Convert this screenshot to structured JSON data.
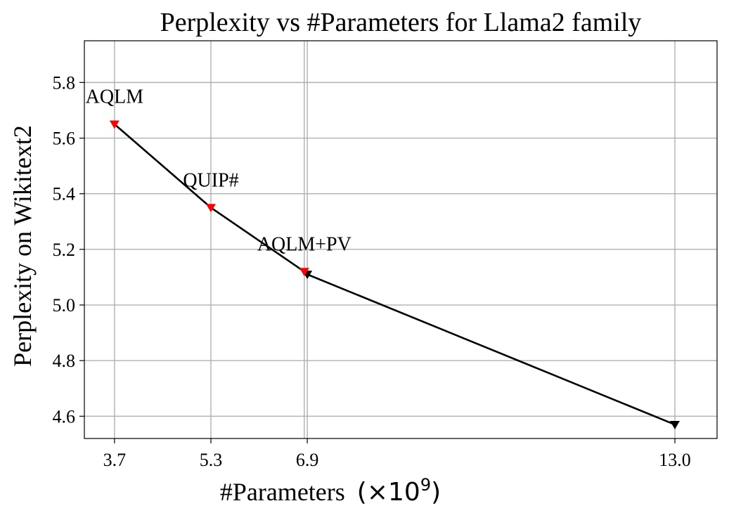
{
  "chart_data": {
    "type": "line",
    "title": "Perplexity vs #Parameters for Llama2 family",
    "xlabel": "#Parameters",
    "xlabel_unit": "(×10",
    "xlabel_unit_exp": "9",
    "xlabel_unit_close": ")",
    "ylabel": "Perplexity on Wikitext2",
    "xlim": [
      3.2,
      13.7
    ],
    "ylim": [
      4.52,
      5.95
    ],
    "x_ticks": [
      3.7,
      5.3,
      6.9,
      13.0
    ],
    "x_tick_labels": [
      "3.7",
      "5.3",
      "6.9",
      "13.0"
    ],
    "extra_x_gridlines": [
      6.85
    ],
    "y_ticks": [
      4.6,
      4.8,
      5.0,
      5.2,
      5.4,
      5.6,
      5.8
    ],
    "y_tick_labels": [
      "4.6",
      "4.8",
      "5.0",
      "5.2",
      "5.4",
      "5.6",
      "5.8"
    ],
    "grid": true,
    "series": [
      {
        "color": "#000000",
        "marker": "triangle-down",
        "points": [
          {
            "x": 6.9,
            "y": 5.11
          },
          {
            "x": 13.0,
            "y": 4.57
          }
        ]
      },
      {
        "color": "#ff0000",
        "marker": "triangle-down",
        "points": [
          {
            "x": 3.7,
            "y": 5.65,
            "label": "AQLM"
          },
          {
            "x": 5.3,
            "y": 5.35,
            "label": "QUIP#"
          },
          {
            "x": 6.85,
            "y": 5.12,
            "label": "AQLM+PV"
          }
        ]
      }
    ],
    "line_color": "#000000"
  }
}
